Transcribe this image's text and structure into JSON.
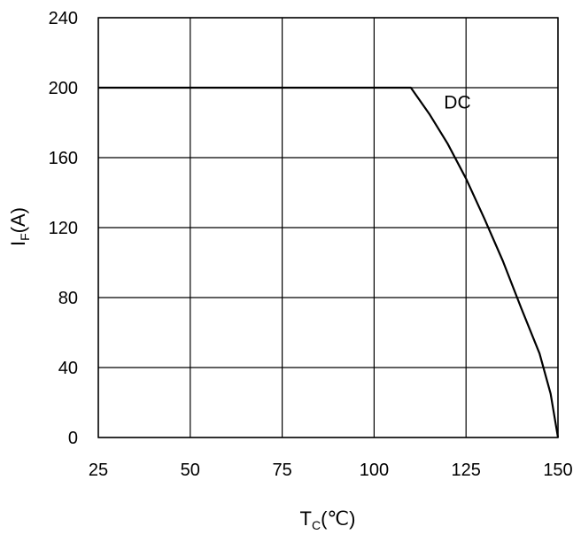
{
  "chart_data": {
    "type": "line",
    "xlim": [
      25,
      150
    ],
    "ylim": [
      0,
      240
    ],
    "x_ticks": [
      25,
      50,
      75,
      100,
      125,
      150
    ],
    "y_ticks": [
      0,
      40,
      80,
      120,
      160,
      200,
      240
    ],
    "grid": true,
    "xlabel": {
      "main": "T",
      "sub": "C",
      "unit": "(℃)"
    },
    "ylabel": {
      "main": "I",
      "sub": "F",
      "unit": "(A)"
    },
    "series": [
      {
        "name": "DC",
        "x": [
          25,
          110,
          115,
          120,
          125,
          130,
          135,
          140,
          145,
          148,
          150
        ],
        "y": [
          200,
          200,
          185,
          168,
          148,
          125,
          101,
          74,
          48,
          25,
          0
        ]
      }
    ],
    "annotations": [
      {
        "text": "DC",
        "x": 119,
        "y": 188
      }
    ]
  }
}
